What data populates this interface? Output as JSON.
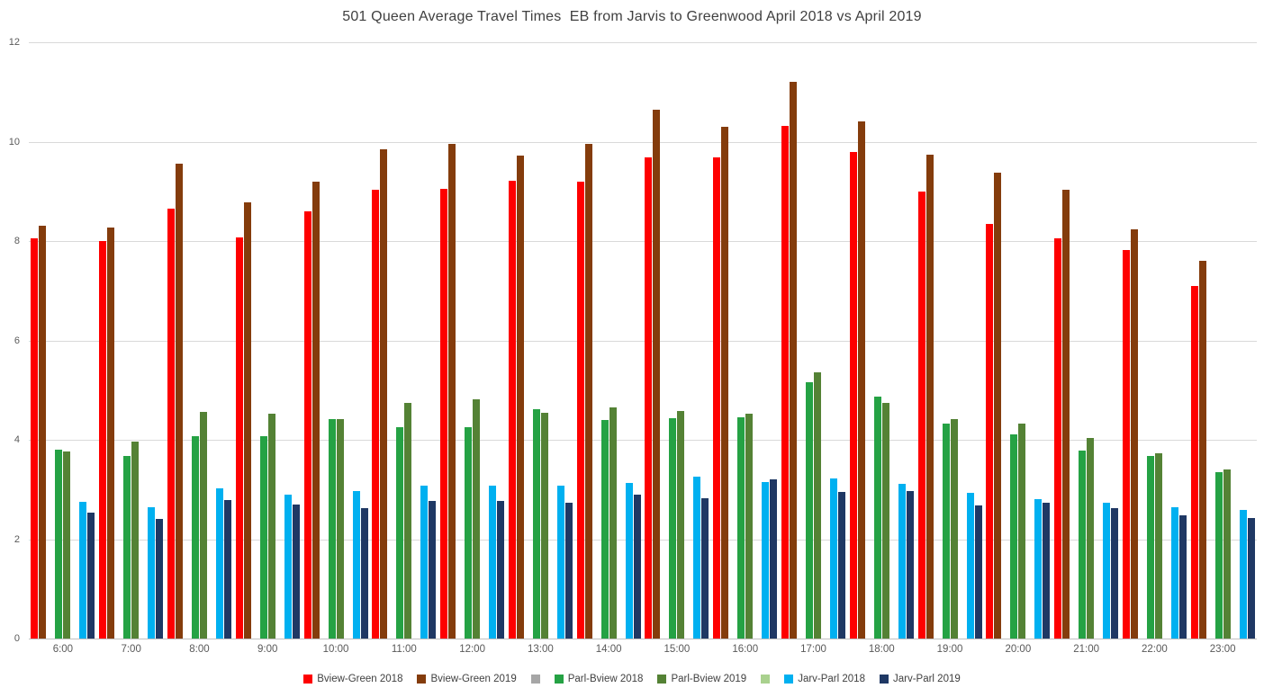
{
  "title": "501 Queen Average Travel Times  EB from Jarvis to Greenwood April 2018 vs April 2019",
  "colors": {
    "grid": "#d9d9d9",
    "axis_text": "#595959",
    "title_text": "#404040",
    "background": "#ffffff"
  },
  "chart_data": {
    "type": "bar",
    "title": "501 Queen Average Travel Times  EB from Jarvis to Greenwood April 2018 vs April 2019",
    "xlabel": "",
    "ylabel": "",
    "ylim": [
      0,
      12
    ],
    "yticks": [
      0,
      2,
      4,
      6,
      8,
      10,
      12
    ],
    "grid": true,
    "legend_position": "bottom",
    "categories": [
      "6:00",
      "7:00",
      "8:00",
      "9:00",
      "10:00",
      "11:00",
      "12:00",
      "13:00",
      "14:00",
      "15:00",
      "16:00",
      "17:00",
      "18:00",
      "19:00",
      "20:00",
      "21:00",
      "22:00",
      "23:00"
    ],
    "series": [
      {
        "name": "Bview-Green 2018",
        "color": "#fe0000",
        "values": [
          8.05,
          8.0,
          8.65,
          8.07,
          8.6,
          9.03,
          9.05,
          9.22,
          9.2,
          9.68,
          9.68,
          10.32,
          9.8,
          9.0,
          8.35,
          8.05,
          7.82,
          7.1
        ]
      },
      {
        "name": "Bview-Green 2019",
        "color": "#843c0c",
        "values": [
          8.3,
          8.27,
          9.55,
          8.77,
          9.2,
          9.85,
          9.95,
          9.72,
          9.95,
          10.65,
          10.3,
          11.2,
          10.4,
          9.73,
          9.37,
          9.03,
          8.23,
          7.6
        ]
      },
      {
        "name": "",
        "color": "#a6a6a6",
        "values": null
      },
      {
        "name": "Parl-Bview 2018",
        "color": "#25a244",
        "values": [
          3.8,
          3.68,
          4.07,
          4.07,
          4.42,
          4.25,
          4.25,
          4.62,
          4.4,
          4.43,
          4.45,
          5.15,
          4.87,
          4.33,
          4.1,
          3.78,
          3.68,
          3.35
        ]
      },
      {
        "name": "Parl-Bview 2019",
        "color": "#548235",
        "values": [
          3.77,
          3.97,
          4.57,
          4.53,
          4.42,
          4.75,
          4.82,
          4.55,
          4.65,
          4.58,
          4.53,
          5.35,
          4.75,
          4.42,
          4.33,
          4.03,
          3.72,
          3.4
        ]
      },
      {
        "name": "",
        "color": "#a9d18e",
        "values": null
      },
      {
        "name": "Jarv-Parl 2018",
        "color": "#00b0f0",
        "values": [
          2.75,
          2.65,
          3.02,
          2.9,
          2.97,
          3.07,
          3.07,
          3.08,
          3.13,
          3.25,
          3.15,
          3.22,
          3.12,
          2.93,
          2.8,
          2.73,
          2.65,
          2.58
        ]
      },
      {
        "name": "Jarv-Parl 2019",
        "color": "#1f3864",
        "values": [
          2.53,
          2.4,
          2.78,
          2.7,
          2.63,
          2.77,
          2.77,
          2.73,
          2.9,
          2.82,
          3.2,
          2.95,
          2.97,
          2.67,
          2.73,
          2.62,
          2.48,
          2.43
        ]
      }
    ]
  }
}
